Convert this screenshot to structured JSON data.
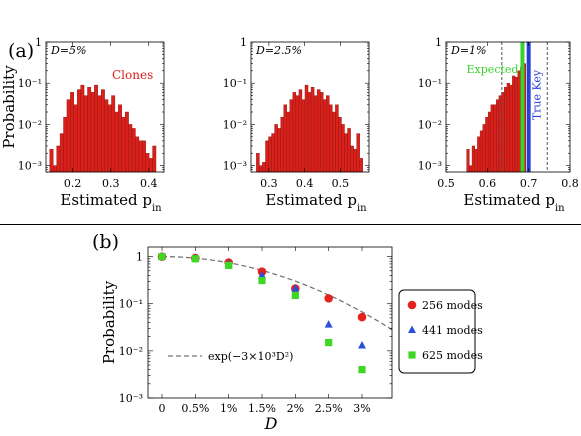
{
  "chart_data": [
    {
      "panel_label": "(a)",
      "type": "histogram",
      "annotation": "D=5%",
      "series_label": "Clones",
      "xlabel": "Estimated p",
      "xlabel_sub": "in",
      "ylabel": "Probability",
      "yscale": "log",
      "xlim": [
        0.13,
        0.44
      ],
      "ylim": [
        0.0007,
        1
      ],
      "xticks": [
        "0.2",
        "0.3",
        "0.4"
      ],
      "xtick_values": [
        0.2,
        0.3,
        0.4
      ],
      "yticks": [
        "1",
        "10⁻¹",
        "10⁻²",
        "10⁻³"
      ],
      "ytick_values": [
        1,
        0.1,
        0.01,
        0.001
      ],
      "bin_start": 0.14,
      "bin_width": 0.009,
      "values": [
        0.0025,
        0.001,
        0.003,
        0.006,
        0.015,
        0.04,
        0.06,
        0.03,
        0.07,
        0.09,
        0.05,
        0.08,
        0.06,
        0.09,
        0.05,
        0.07,
        0.04,
        0.03,
        0.05,
        0.02,
        0.03,
        0.015,
        0.02,
        0.01,
        0.008,
        0.005,
        0.004,
        0.004,
        0.002,
        0.0015,
        0.003
      ],
      "bar_color": "#d9201b"
    },
    {
      "type": "histogram",
      "annotation": "D=2.5%",
      "xlabel": "Estimated p",
      "xlabel_sub": "in",
      "yscale": "log",
      "xlim": [
        0.25,
        0.58
      ],
      "ylim": [
        0.0007,
        1
      ],
      "xticks": [
        "0.3",
        "0.4",
        "0.5"
      ],
      "xtick_values": [
        0.3,
        0.4,
        0.5
      ],
      "yticks": [
        "1",
        "10⁻¹",
        "10⁻²",
        "10⁻³"
      ],
      "ytick_values": [
        1,
        0.1,
        0.01,
        0.001
      ],
      "bin_start": 0.265,
      "bin_width": 0.0085,
      "values": [
        0.002,
        0.001,
        0.0012,
        0.004,
        0.005,
        0.006,
        0.01,
        0.008,
        0.015,
        0.03,
        0.02,
        0.04,
        0.06,
        0.05,
        0.07,
        0.04,
        0.09,
        0.06,
        0.08,
        0.05,
        0.07,
        0.06,
        0.04,
        0.05,
        0.03,
        0.02,
        0.03,
        0.015,
        0.01,
        0.006,
        0.008,
        0.003,
        0.0025,
        0.006,
        0.0015
      ],
      "bar_color": "#d9201b"
    },
    {
      "type": "histogram",
      "annotation": "D=1%",
      "xlabel": "Estimated p",
      "xlabel_sub": "in",
      "yscale": "log",
      "xlim": [
        0.5,
        0.8
      ],
      "ylim": [
        0.0007,
        1
      ],
      "xticks": [
        "0.5",
        "0.6",
        "0.7",
        "0.8"
      ],
      "xtick_values": [
        0.5,
        0.6,
        0.7,
        0.8
      ],
      "yticks": [
        "1",
        "10⁻¹",
        "10⁻²",
        "10⁻³"
      ],
      "ytick_values": [
        1,
        0.1,
        0.01,
        0.001
      ],
      "bin_start": 0.55,
      "bin_width": 0.0065,
      "values": [
        0.0025,
        0.001,
        0.003,
        0.0025,
        0.005,
        0.007,
        0.01,
        0.015,
        0.02,
        0.03,
        0.03,
        0.04,
        0.05,
        0.06,
        0.08,
        0.1,
        0.09,
        0.15,
        0.14,
        0.2,
        0.25,
        0.3
      ],
      "bar_color": "#d9201b",
      "vlines": [
        {
          "x": 0.635,
          "style": "dashed",
          "color": "#555555"
        },
        {
          "x": 0.685,
          "style": "solid",
          "color": "#3bd12e",
          "label": "Expected"
        },
        {
          "x": 0.7,
          "style": "solid",
          "color": "#2a3fd6",
          "label": "True Key"
        },
        {
          "x": 0.745,
          "style": "dashed",
          "color": "#555555"
        }
      ]
    },
    {
      "panel_label": "(b)",
      "type": "scatter",
      "xlabel": "D",
      "ylabel": "Probability",
      "yscale": "log",
      "ylim": [
        0.001,
        1.6
      ],
      "categories": [
        "0",
        "0.5%",
        "1%",
        "1.5%",
        "2%",
        "2.5%",
        "3%"
      ],
      "x": [
        0,
        0.005,
        0.01,
        0.015,
        0.02,
        0.025,
        0.03
      ],
      "yticks": [
        "1",
        "10⁻¹",
        "10⁻²",
        "10⁻³"
      ],
      "ytick_values": [
        1,
        0.1,
        0.01,
        0.001
      ],
      "series": [
        {
          "name": "256 modes",
          "marker": "circle",
          "color": "#e5231c",
          "values": [
            1,
            0.93,
            0.75,
            0.48,
            0.21,
            0.13,
            0.052
          ]
        },
        {
          "name": "441 modes",
          "marker": "triangle",
          "color": "#2a50d8",
          "values": [
            1,
            0.92,
            0.7,
            0.4,
            0.21,
            0.036,
            0.013
          ]
        },
        {
          "name": "625 modes",
          "marker": "square",
          "color": "#3ed824",
          "values": [
            1,
            0.9,
            0.65,
            0.31,
            0.15,
            0.015,
            0.004
          ]
        }
      ],
      "fit": {
        "label": "exp(−3×10³D²)",
        "coefficient": 3000,
        "color": "#777777",
        "style": "dashed"
      },
      "legend_position": "right"
    }
  ]
}
